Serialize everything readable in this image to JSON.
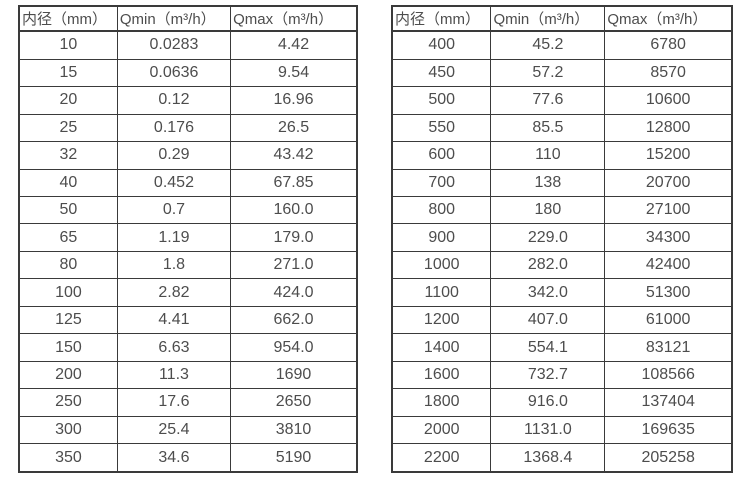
{
  "chart_data": [
    {
      "type": "table",
      "headers": [
        "内径（mm）",
        "Qmin（m³/h）",
        "Qmax（m³/h）"
      ],
      "rows": [
        [
          "10",
          "0.0283",
          "4.42"
        ],
        [
          "15",
          "0.0636",
          "9.54"
        ],
        [
          "20",
          "0.12",
          "16.96"
        ],
        [
          "25",
          "0.176",
          "26.5"
        ],
        [
          "32",
          "0.29",
          "43.42"
        ],
        [
          "40",
          "0.452",
          "67.85"
        ],
        [
          "50",
          "0.7",
          "160.0"
        ],
        [
          "65",
          "1.19",
          "179.0"
        ],
        [
          "80",
          "1.8",
          "271.0"
        ],
        [
          "100",
          "2.82",
          "424.0"
        ],
        [
          "125",
          "4.41",
          "662.0"
        ],
        [
          "150",
          "6.63",
          "954.0"
        ],
        [
          "200",
          "11.3",
          "1690"
        ],
        [
          "250",
          "17.6",
          "2650"
        ],
        [
          "300",
          "25.4",
          "3810"
        ],
        [
          "350",
          "34.6",
          "5190"
        ]
      ]
    },
    {
      "type": "table",
      "headers": [
        "内径（mm）",
        "Qmin（m³/h）",
        "Qmax（m³/h）"
      ],
      "rows": [
        [
          "400",
          "45.2",
          "6780"
        ],
        [
          "450",
          "57.2",
          "8570"
        ],
        [
          "500",
          "77.6",
          "10600"
        ],
        [
          "550",
          "85.5",
          "12800"
        ],
        [
          "600",
          "110",
          "15200"
        ],
        [
          "700",
          "138",
          "20700"
        ],
        [
          "800",
          "180",
          "27100"
        ],
        [
          "900",
          "229.0",
          "34300"
        ],
        [
          "1000",
          "282.0",
          "42400"
        ],
        [
          "1100",
          "342.0",
          "51300"
        ],
        [
          "1200",
          "407.0",
          "61000"
        ],
        [
          "1400",
          "554.1",
          "83121"
        ],
        [
          "1600",
          "732.7",
          "108566"
        ],
        [
          "1800",
          "916.0",
          "137404"
        ],
        [
          "2000",
          "1131.0",
          "169635"
        ],
        [
          "2200",
          "1368.4",
          "205258"
        ]
      ]
    }
  ],
  "colors": {
    "border": "#3a3a3a",
    "text": "#4d4d4d",
    "background": "#ffffff"
  }
}
